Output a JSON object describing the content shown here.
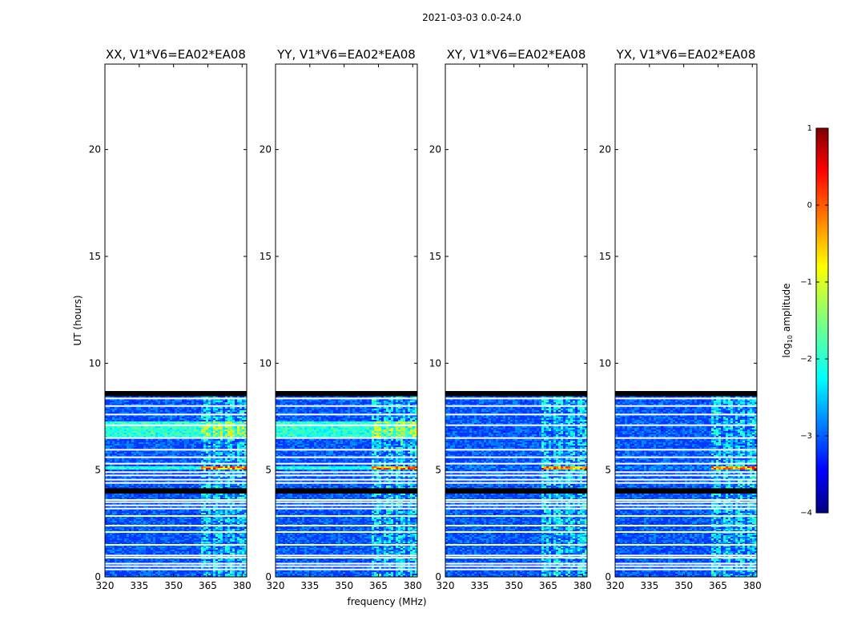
{
  "figure": {
    "suptitle": "2021-03-03 0.0-24.0",
    "xlabel": "frequency (MHz)",
    "ylabel": "UT (hours)"
  },
  "chart_data": {
    "type": "heatmap",
    "x": {
      "label": "frequency (MHz)",
      "range": [
        320,
        382
      ],
      "ticks": [
        320,
        335,
        350,
        365,
        380
      ]
    },
    "y": {
      "label": "UT (hours)",
      "range": [
        0,
        24
      ],
      "ticks": [
        0,
        5,
        10,
        15,
        20
      ]
    },
    "panels": [
      {
        "title": "XX, V1*V6=EA02*EA08"
      },
      {
        "title": "YY, V1*V6=EA02*EA08"
      },
      {
        "title": "XY, V1*V6=EA02*EA08"
      },
      {
        "title": "YX, V1*V6=EA02*EA08"
      }
    ],
    "data_extent_hours": [
      0,
      8.7
    ],
    "flagged_rows_hours": [
      0.35,
      0.5,
      0.62,
      0.9,
      1.0,
      1.5,
      2.1,
      2.4,
      2.85,
      3.2,
      3.35,
      3.5,
      3.6,
      4.4,
      4.55,
      4.75,
      4.9,
      5.3,
      5.6,
      5.95,
      6.5,
      7.1,
      7.6,
      8.0,
      8.35
    ],
    "dark_rows_hours": [
      [
        3.9,
        4.15
      ],
      [
        8.45,
        8.7
      ]
    ],
    "rfi_band_mhz": [
      362,
      381
    ],
    "rfi_sub_bands_mhz": [
      [
        362,
        366
      ],
      [
        367,
        371
      ],
      [
        372,
        376
      ],
      [
        377,
        381
      ]
    ],
    "colorbar": {
      "label": "log10 amplitude",
      "label_text": "log",
      "label_sub": "10",
      "label_rest": " amplitude",
      "range": [
        -4,
        1
      ],
      "ticks": [
        1,
        0,
        -1,
        -2,
        -3,
        -4
      ],
      "tick_labels": [
        "1",
        "0",
        "−1",
        "−2",
        "−3",
        "−4"
      ],
      "colormap": "jet"
    }
  }
}
